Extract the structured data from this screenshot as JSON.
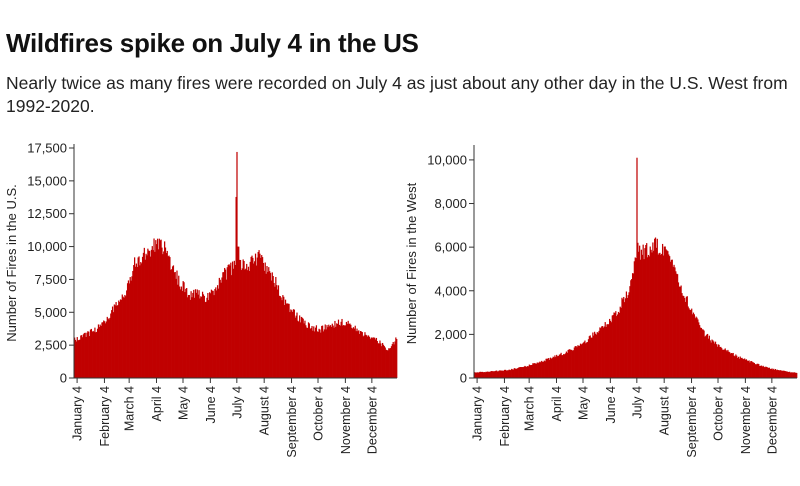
{
  "header": {
    "title": "Wildfires spike on July 4 in the US",
    "subtitle": "Nearly twice as many fires were recorded on July 4 as just about any other day in the U.S. West from 1992-2020."
  },
  "chart_data": [
    {
      "type": "bar",
      "ylabel": "Number of Fires in the U.S.",
      "xlabel": "",
      "ylim": [
        0,
        17500
      ],
      "yticks": [
        0,
        2500,
        5000,
        7500,
        10000,
        12500,
        15000,
        17500
      ],
      "ytick_labels": [
        "0",
        "2,500",
        "5,000",
        "7,500",
        "10,000",
        "12,500",
        "15,000",
        "17,500"
      ],
      "xtick_labels": [
        "January 4",
        "February 4",
        "March 4",
        "April 4",
        "May 4",
        "June 4",
        "July 4",
        "August 4",
        "September 4",
        "October 4",
        "November 4",
        "December 4"
      ],
      "xtick_days": [
        4,
        35,
        63,
        94,
        124,
        155,
        185,
        216,
        247,
        277,
        308,
        338
      ],
      "days_in_year": 366,
      "grid": false,
      "color": "#c00000",
      "x": [
        1,
        15,
        30,
        45,
        60,
        70,
        80,
        90,
        95,
        100,
        110,
        120,
        130,
        140,
        150,
        160,
        170,
        178,
        183,
        185,
        186,
        190,
        200,
        210,
        220,
        230,
        240,
        250,
        260,
        270,
        280,
        290,
        300,
        310,
        320,
        330,
        340,
        350,
        355,
        360,
        366
      ],
      "values": [
        2900,
        3300,
        3900,
        5200,
        6800,
        8800,
        9300,
        10000,
        10400,
        10200,
        8800,
        7300,
        6400,
        6300,
        6100,
        6700,
        7800,
        8300,
        8600,
        17200,
        10000,
        8600,
        8700,
        9200,
        8200,
        7100,
        5600,
        4900,
        4300,
        3800,
        3700,
        4000,
        4200,
        4300,
        3700,
        3300,
        3100,
        2500,
        2000,
        2400,
        3100
      ]
    },
    {
      "type": "bar",
      "ylabel": "Number of Fires in the West",
      "xlabel": "",
      "ylim": [
        0,
        10500
      ],
      "yticks": [
        0,
        2000,
        4000,
        6000,
        8000,
        10000
      ],
      "ytick_labels": [
        "0",
        "2,000",
        "4,000",
        "6,000",
        "8,000",
        "10,000"
      ],
      "xtick_labels": [
        "January 4",
        "February 4",
        "March 4",
        "April 4",
        "May 4",
        "June 4",
        "July 4",
        "August 4",
        "September 4",
        "October 4",
        "November 4",
        "December 4"
      ],
      "xtick_days": [
        4,
        35,
        63,
        94,
        124,
        155,
        185,
        216,
        247,
        277,
        308,
        338
      ],
      "days_in_year": 366,
      "grid": false,
      "color": "#c00000",
      "x": [
        1,
        20,
        40,
        60,
        80,
        100,
        120,
        140,
        155,
        165,
        175,
        180,
        184,
        185,
        186,
        190,
        200,
        210,
        220,
        230,
        240,
        250,
        260,
        270,
        280,
        290,
        300,
        310,
        320,
        330,
        340,
        350,
        360,
        366
      ],
      "values": [
        250,
        300,
        370,
        550,
        800,
        1100,
        1500,
        2100,
        2700,
        3200,
        4000,
        5000,
        5500,
        10100,
        6200,
        5700,
        5900,
        6100,
        5600,
        4800,
        3700,
        2800,
        2100,
        1700,
        1400,
        1200,
        950,
        800,
        650,
        500,
        400,
        330,
        260,
        240
      ]
    }
  ]
}
